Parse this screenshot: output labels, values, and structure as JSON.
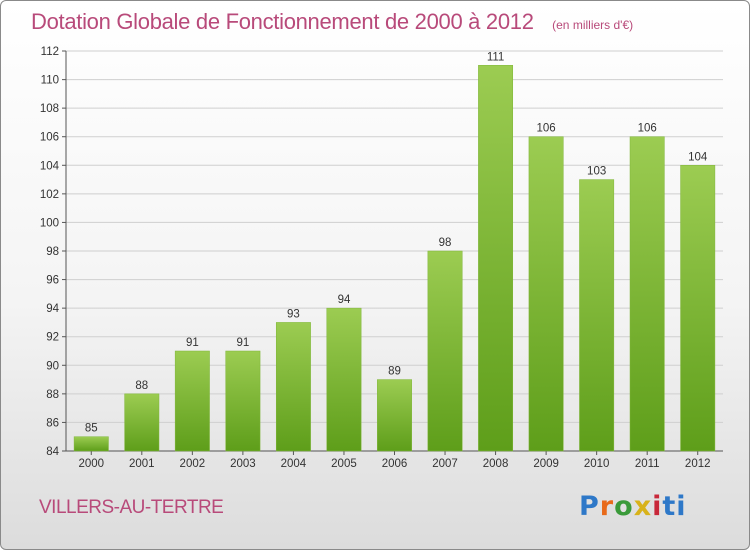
{
  "chart_data": {
    "type": "bar",
    "title": "Dotation Globale de Fonctionnement de 2000 à 2012",
    "subtitle": "(en milliers d'€)",
    "categories": [
      "2000",
      "2001",
      "2002",
      "2003",
      "2004",
      "2005",
      "2006",
      "2007",
      "2008",
      "2009",
      "2010",
      "2011",
      "2012"
    ],
    "values": [
      85,
      88,
      91,
      91,
      93,
      94,
      89,
      98,
      111,
      106,
      103,
      106,
      104
    ],
    "ylim": [
      84,
      112
    ],
    "yticks": [
      84,
      86,
      88,
      90,
      92,
      94,
      96,
      98,
      100,
      102,
      104,
      106,
      108,
      110,
      112
    ],
    "xlabel": "",
    "ylabel": "",
    "grid": true,
    "bar_color_top": "#9ccc52",
    "bar_color_bottom": "#5e9e1a"
  },
  "footer": {
    "commune": "VILLERS-AU-TERTRE",
    "logo_letters": [
      "P",
      "r",
      "o",
      "x",
      "i",
      "ti"
    ]
  }
}
